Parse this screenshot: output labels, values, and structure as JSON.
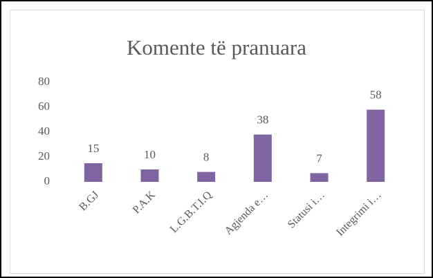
{
  "chart_data": {
    "type": "bar",
    "title": "Komente të pranuara",
    "categories": [
      "B.GJ",
      "P.A.K",
      "L.G.B.T.I.Q",
      "Agjenda e…",
      "Statusi i…",
      "Integrimi i…"
    ],
    "values": [
      15,
      10,
      8,
      38,
      7,
      58
    ],
    "color": "#8064a2",
    "ylim": [
      0,
      80
    ],
    "yticks": [
      0,
      20,
      40,
      60,
      80
    ],
    "grid": false
  }
}
